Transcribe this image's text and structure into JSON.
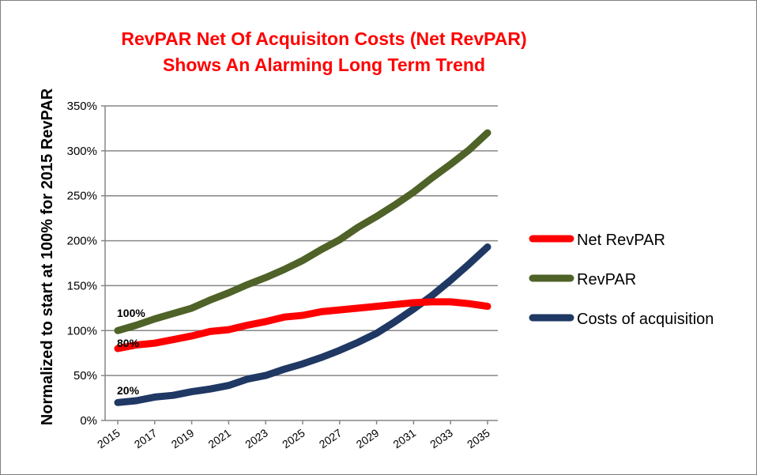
{
  "chart_data": {
    "type": "line",
    "title": "RevPAR Net Of Acquisiton Costs (Net RevPAR)",
    "subtitle": "Shows An Alarming Long Term Trend",
    "xlabel": "",
    "ylabel": "Normalized to start at 100% for 2015 RevPAR",
    "ylim": [
      0,
      350
    ],
    "y_ticks": [
      "0%",
      "50%",
      "100%",
      "150%",
      "200%",
      "250%",
      "300%",
      "350%"
    ],
    "x": [
      2015,
      2016,
      2017,
      2018,
      2019,
      2020,
      2021,
      2022,
      2023,
      2024,
      2025,
      2026,
      2027,
      2028,
      2029,
      2030,
      2031,
      2032,
      2033,
      2034,
      2035
    ],
    "x_tick_labels": [
      "2015",
      "2017",
      "2019",
      "2021",
      "2023",
      "2025",
      "2027",
      "2029",
      "2031",
      "2033",
      "2035"
    ],
    "grid": "horizontal",
    "legend_position": "right",
    "series": [
      {
        "name": "Net RevPAR",
        "color": "#ff0000",
        "values": [
          80,
          84,
          86,
          90,
          94,
          99,
          101,
          106,
          110,
          115,
          117,
          121,
          123,
          125,
          127,
          129,
          131,
          132,
          132,
          130,
          127
        ]
      },
      {
        "name": "RevPAR",
        "color": "#4f6228",
        "values": [
          100,
          106,
          113,
          119,
          125,
          134,
          142,
          151,
          159,
          168,
          178,
          190,
          201,
          215,
          227,
          240,
          254,
          270,
          285,
          301,
          320
        ]
      },
      {
        "name": "Costs of acquisition",
        "color": "#1f3864",
        "values": [
          20,
          22,
          26,
          28,
          32,
          35,
          39,
          46,
          50,
          57,
          63,
          70,
          78,
          87,
          97,
          110,
          124,
          139,
          156,
          174,
          193
        ]
      }
    ],
    "annotations": [
      "100%",
      "80%",
      "20%"
    ]
  }
}
